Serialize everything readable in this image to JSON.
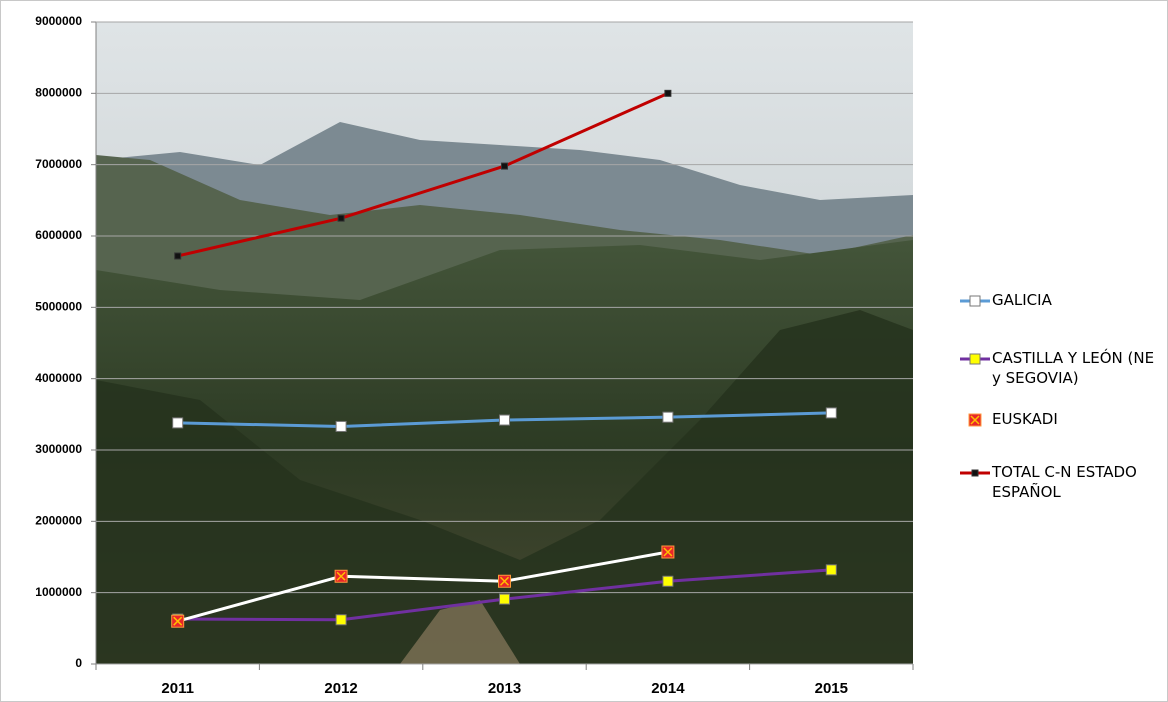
{
  "chart_data": {
    "type": "line",
    "categories": [
      "2011",
      "2012",
      "2013",
      "2014",
      "2015"
    ],
    "ylim": [
      0,
      9000000
    ],
    "yticks": [
      0,
      1000000,
      2000000,
      3000000,
      4000000,
      5000000,
      6000000,
      7000000,
      8000000,
      9000000
    ],
    "grid": true,
    "legend": "right",
    "series": [
      {
        "name": "GALICIA",
        "color": "#5b9bd5",
        "marker": "square",
        "marker_fill": "#ffffff",
        "values": [
          3380000,
          3330000,
          3420000,
          3460000,
          3520000
        ]
      },
      {
        "name": "CASTILLA Y LEÓN (NE y SEGOVIA)",
        "color": "#7030a0",
        "marker": "square",
        "marker_fill": "#ffff00",
        "values": [
          630000,
          620000,
          910000,
          1160000,
          1320000
        ]
      },
      {
        "name": "EUSKADI",
        "color": "#ffffff",
        "marker": "cross",
        "marker_fill": "#e8262a",
        "values": [
          600000,
          1230000,
          1160000,
          1570000,
          null
        ]
      },
      {
        "name": "TOTAL C-N ESTADO ESPAÑOL",
        "color": "#c00000",
        "marker": "square",
        "marker_fill": "#111111",
        "values": [
          5720000,
          6250000,
          6980000,
          8000000,
          null
        ]
      }
    ]
  }
}
